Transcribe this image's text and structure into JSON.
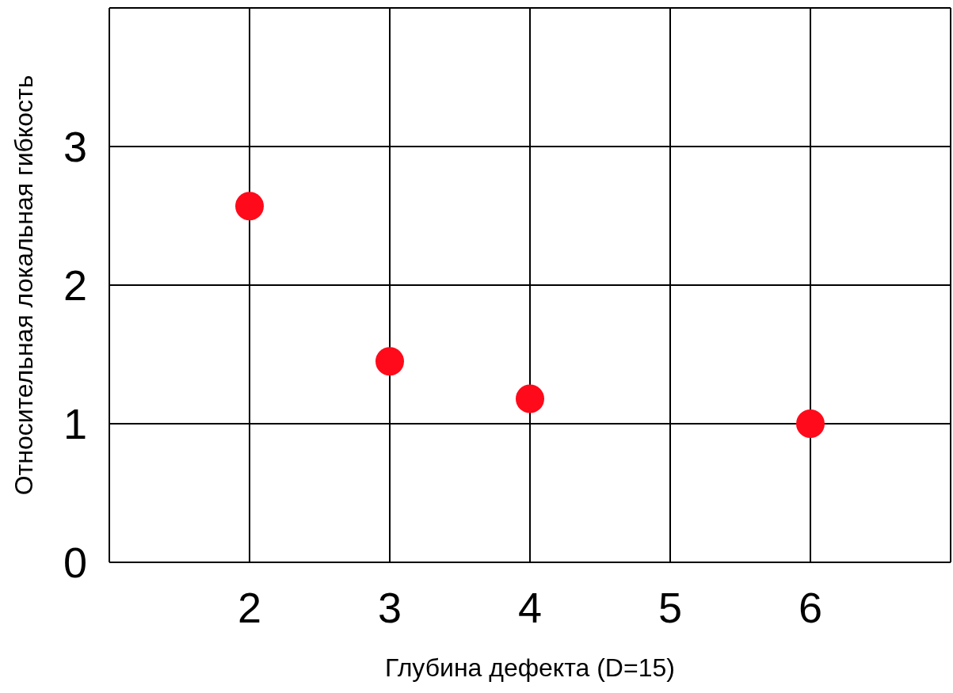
{
  "chart_data": {
    "type": "scatter",
    "xlabel": "Глубина дефекта (D=15)",
    "ylabel": "Относительная локальная гибкость",
    "x": [
      2,
      3,
      4,
      6
    ],
    "series": [
      {
        "color": "#ff0a1a",
        "values": [
          2.57,
          1.45,
          1.18,
          1.0
        ]
      }
    ],
    "xlim": [
      1,
      7
    ],
    "xticks": [
      {
        "value": 1,
        "label": null
      },
      2,
      3,
      4,
      5,
      6,
      {
        "value": 7,
        "label": null
      }
    ],
    "ylim": [
      0,
      4
    ],
    "yticks": [
      0,
      1,
      2,
      3,
      {
        "value": 4,
        "label": null
      }
    ],
    "grid": true,
    "marker": "circle",
    "legend": false
  }
}
